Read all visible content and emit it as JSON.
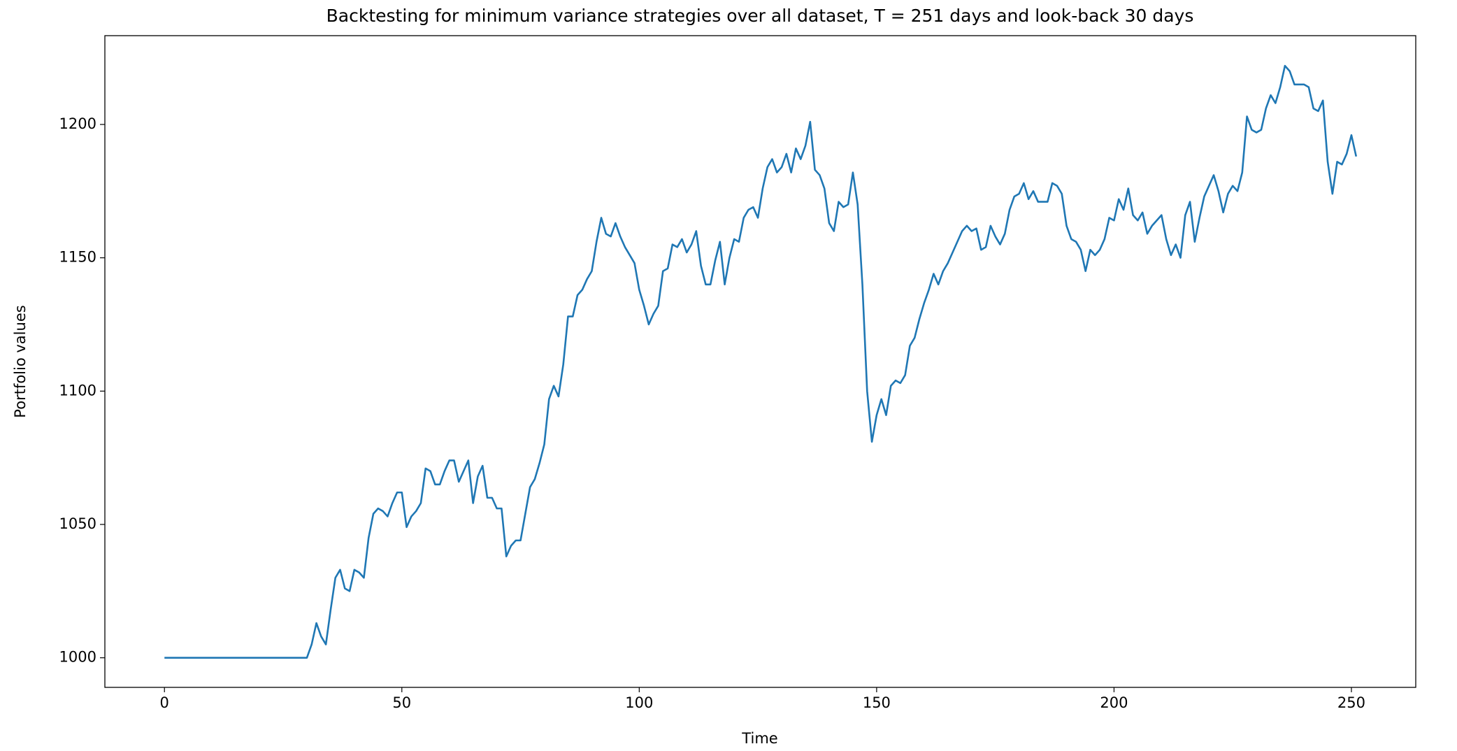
{
  "chart_data": {
    "type": "line",
    "title": "Backtesting for minimum variance strategies over all dataset, T = 251 days and look-back 30 days",
    "x_label": "Time",
    "y_label": "Portfolio values",
    "x": [
      0,
      1,
      2,
      3,
      4,
      5,
      6,
      7,
      8,
      9,
      10,
      11,
      12,
      13,
      14,
      15,
      16,
      17,
      18,
      19,
      20,
      21,
      22,
      23,
      24,
      25,
      26,
      27,
      28,
      29,
      30,
      31,
      32,
      33,
      34,
      35,
      36,
      37,
      38,
      39,
      40,
      41,
      42,
      43,
      44,
      45,
      46,
      47,
      48,
      49,
      50,
      51,
      52,
      53,
      54,
      55,
      56,
      57,
      58,
      59,
      60,
      61,
      62,
      63,
      64,
      65,
      66,
      67,
      68,
      69,
      70,
      71,
      72,
      73,
      74,
      75,
      76,
      77,
      78,
      79,
      80,
      81,
      82,
      83,
      84,
      85,
      86,
      87,
      88,
      89,
      90,
      91,
      92,
      93,
      94,
      95,
      96,
      97,
      98,
      99,
      100,
      101,
      102,
      103,
      104,
      105,
      106,
      107,
      108,
      109,
      110,
      111,
      112,
      113,
      114,
      115,
      116,
      117,
      118,
      119,
      120,
      121,
      122,
      123,
      124,
      125,
      126,
      127,
      128,
      129,
      130,
      131,
      132,
      133,
      134,
      135,
      136,
      137,
      138,
      139,
      140,
      141,
      142,
      143,
      144,
      145,
      146,
      147,
      148,
      149,
      150,
      151,
      152,
      153,
      154,
      155,
      156,
      157,
      158,
      159,
      160,
      161,
      162,
      163,
      164,
      165,
      166,
      167,
      168,
      169,
      170,
      171,
      172,
      173,
      174,
      175,
      176,
      177,
      178,
      179,
      180,
      181,
      182,
      183,
      184,
      185,
      186,
      187,
      188,
      189,
      190,
      191,
      192,
      193,
      194,
      195,
      196,
      197,
      198,
      199,
      200,
      201,
      202,
      203,
      204,
      205,
      206,
      207,
      208,
      209,
      210,
      211,
      212,
      213,
      214,
      215,
      216,
      217,
      218,
      219,
      220,
      221,
      222,
      223,
      224,
      225,
      226,
      227,
      228,
      229,
      230,
      231,
      232,
      233,
      234,
      235,
      236,
      237,
      238,
      239,
      240,
      241,
      242,
      243,
      244,
      245,
      246,
      247,
      248,
      249,
      250,
      251
    ],
    "series": [
      {
        "name": "Portfolio values",
        "color": "#1f77b4",
        "values": [
          1000,
          1000,
          1000,
          1000,
          1000,
          1000,
          1000,
          1000,
          1000,
          1000,
          1000,
          1000,
          1000,
          1000,
          1000,
          1000,
          1000,
          1000,
          1000,
          1000,
          1000,
          1000,
          1000,
          1000,
          1000,
          1000,
          1000,
          1000,
          1000,
          1000,
          1000,
          1005,
          1013,
          1008,
          1005,
          1018,
          1030,
          1033,
          1026,
          1025,
          1033,
          1032,
          1030,
          1045,
          1054,
          1056,
          1055,
          1053,
          1058,
          1062,
          1062,
          1049,
          1053,
          1055,
          1058,
          1071,
          1070,
          1065,
          1065,
          1070,
          1074,
          1074,
          1066,
          1070,
          1074,
          1058,
          1068,
          1072,
          1060,
          1060,
          1056,
          1056,
          1038,
          1042,
          1044,
          1044,
          1054,
          1064,
          1067,
          1073,
          1080,
          1097,
          1102,
          1098,
          1110,
          1128,
          1128,
          1136,
          1138,
          1142,
          1145,
          1156,
          1165,
          1159,
          1158,
          1163,
          1158,
          1154,
          1151,
          1148,
          1138,
          1132,
          1125,
          1129,
          1132,
          1145,
          1146,
          1155,
          1154,
          1157,
          1152,
          1155,
          1160,
          1147,
          1140,
          1140,
          1149,
          1156,
          1140,
          1150,
          1157,
          1156,
          1165,
          1168,
          1169,
          1165,
          1176,
          1184,
          1187,
          1182,
          1184,
          1189,
          1182,
          1191,
          1187,
          1192,
          1201,
          1183,
          1181,
          1176,
          1163,
          1160,
          1171,
          1169,
          1170,
          1182,
          1170,
          1140,
          1100,
          1081,
          1091,
          1097,
          1091,
          1102,
          1104,
          1103,
          1106,
          1117,
          1120,
          1127,
          1133,
          1138,
          1144,
          1140,
          1145,
          1148,
          1152,
          1156,
          1160,
          1162,
          1160,
          1161,
          1153,
          1154,
          1162,
          1158,
          1155,
          1159,
          1168,
          1173,
          1174,
          1178,
          1172,
          1175,
          1171,
          1171,
          1171,
          1178,
          1177,
          1174,
          1162,
          1157,
          1156,
          1153,
          1145,
          1153,
          1151,
          1153,
          1157,
          1165,
          1164,
          1172,
          1168,
          1176,
          1166,
          1164,
          1167,
          1159,
          1162,
          1164,
          1166,
          1157,
          1151,
          1155,
          1150,
          1166,
          1171,
          1156,
          1165,
          1173,
          1177,
          1181,
          1175,
          1167,
          1174,
          1177,
          1175,
          1182,
          1203,
          1198,
          1197,
          1198,
          1206,
          1211,
          1208,
          1214,
          1222,
          1220,
          1215,
          1215,
          1215,
          1214,
          1206,
          1205,
          1209,
          1186,
          1174,
          1186,
          1185,
          1189,
          1196,
          1188
        ]
      }
    ],
    "xlim": [
      -12.55,
      263.55
    ],
    "ylim": [
      988.9,
      1233.3
    ],
    "xticks": [
      0,
      50,
      100,
      150,
      200,
      250
    ],
    "yticks": [
      1000,
      1050,
      1100,
      1150,
      1200
    ],
    "grid": false
  }
}
